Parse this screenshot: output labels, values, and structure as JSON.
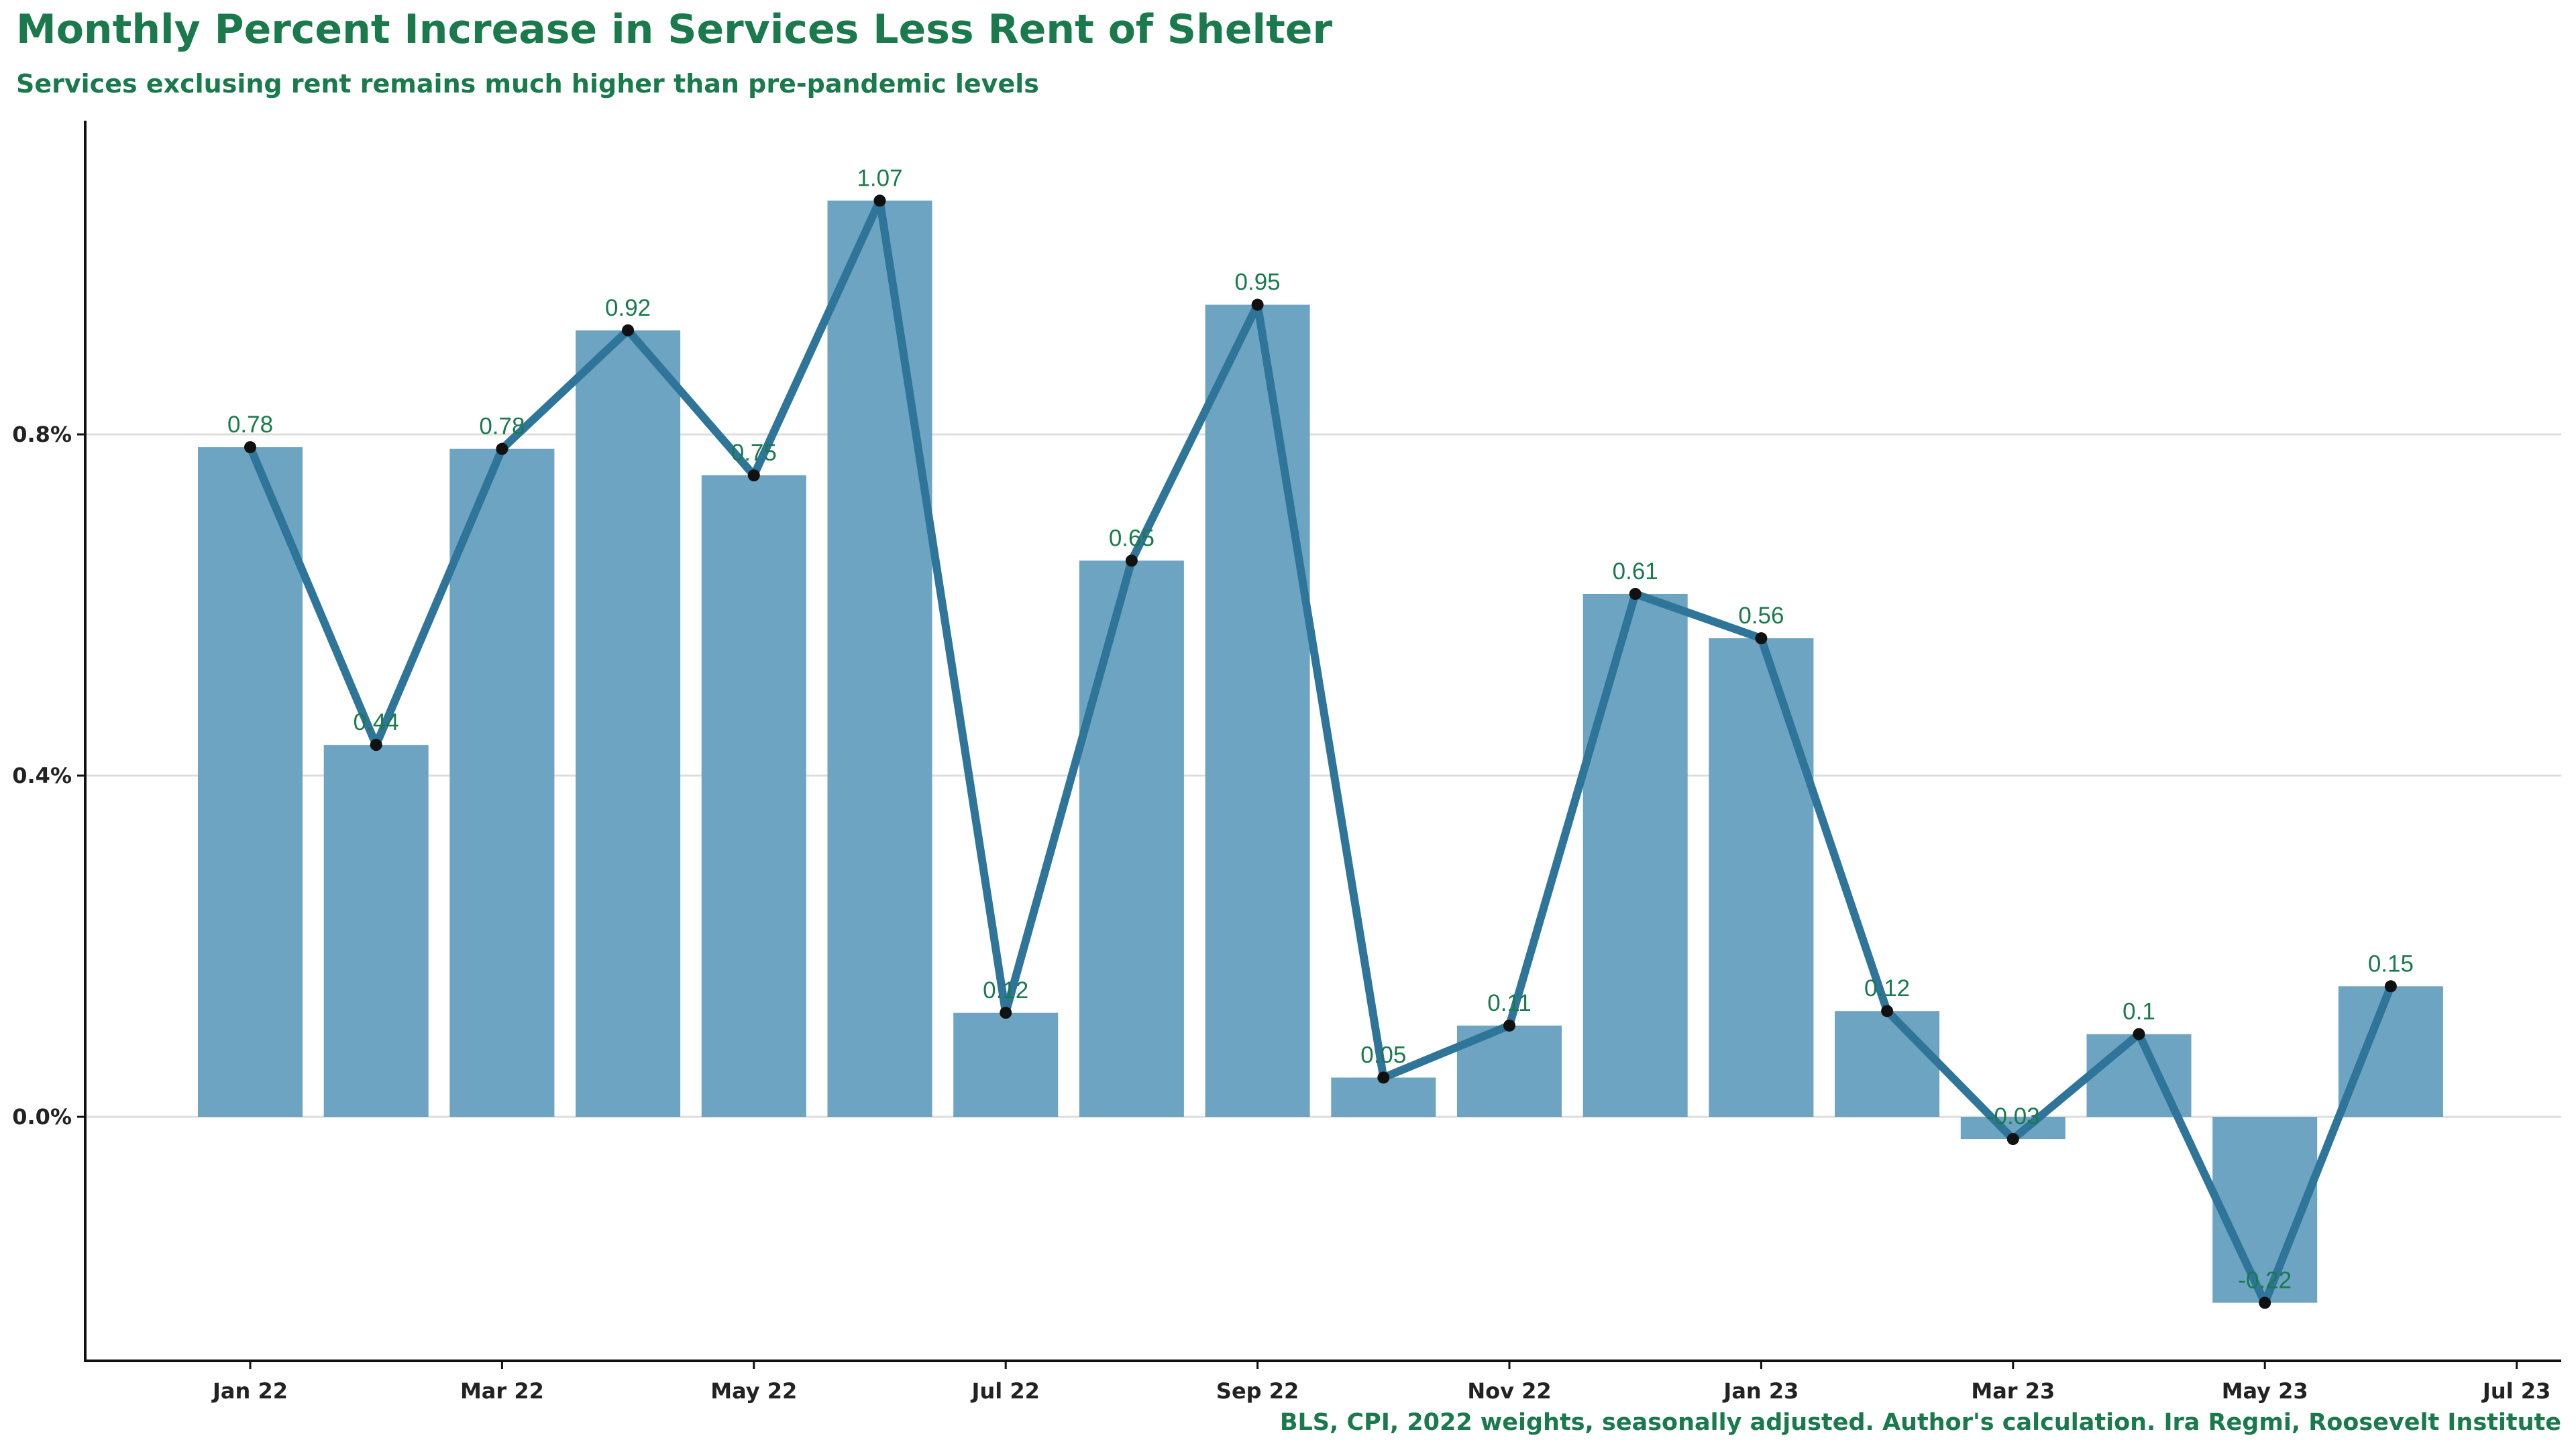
{
  "chart_data": {
    "type": "bar",
    "title": "Monthly Percent Increase in Services Less Rent of Shelter",
    "subtitle": "Services exclusing rent remains much higher than pre-pandemic levels",
    "caption": "BLS, CPI, 2022 weights, seasonally adjusted. Author's calculation. Ira Regmi, Roosevelt Institute",
    "xlabel": "",
    "ylabel": "",
    "categories": [
      "2022-01",
      "2022-02",
      "2022-03",
      "2022-04",
      "2022-05",
      "2022-06",
      "2022-07",
      "2022-08",
      "2022-09",
      "2022-10",
      "2022-11",
      "2022-12",
      "2023-01",
      "2023-02",
      "2023-03",
      "2023-04",
      "2023-05",
      "2023-06"
    ],
    "series": [
      {
        "type": "bar",
        "values": [
          0.785,
          0.436,
          0.783,
          0.922,
          0.752,
          1.074,
          0.122,
          0.652,
          0.952,
          0.046,
          0.107,
          0.613,
          0.561,
          0.124,
          -0.026,
          0.097,
          -0.218,
          0.153
        ]
      },
      {
        "type": "line",
        "values": [
          0.785,
          0.436,
          0.783,
          0.922,
          0.752,
          1.074,
          0.122,
          0.652,
          0.952,
          0.046,
          0.107,
          0.613,
          0.561,
          0.124,
          -0.026,
          0.097,
          -0.218,
          0.153
        ]
      }
    ],
    "data_labels": [
      "0.78",
      "0.44",
      "0.78",
      "0.92",
      "0.75",
      "1.07",
      "0.12",
      "0.65",
      "0.95",
      "0.05",
      "0.11",
      "0.61",
      "0.56",
      "0.12",
      "-0.03",
      "0.1",
      "-0.22",
      "0.15"
    ],
    "x_ticks": [
      "Jan 22",
      "Mar 22",
      "May 22",
      "Jul 22",
      "Sep 22",
      "Nov 22",
      "Jan 23",
      "Mar 23",
      "May 23",
      "Jul 23"
    ],
    "y_ticks": [
      "0.0%",
      "0.4%",
      "0.8%"
    ],
    "y_tick_values": [
      0.0,
      0.4,
      0.8
    ],
    "ylim": [
      -0.28,
      1.16
    ],
    "grid": "horizontal",
    "legend": "none",
    "colors": {
      "bar": "#6ca4c2",
      "line": "#2e7599",
      "marker": "#111111",
      "title": "#1a7a4c",
      "data_label": "#1a7a4c",
      "axis": "#111111",
      "grid": "#dedede"
    }
  }
}
